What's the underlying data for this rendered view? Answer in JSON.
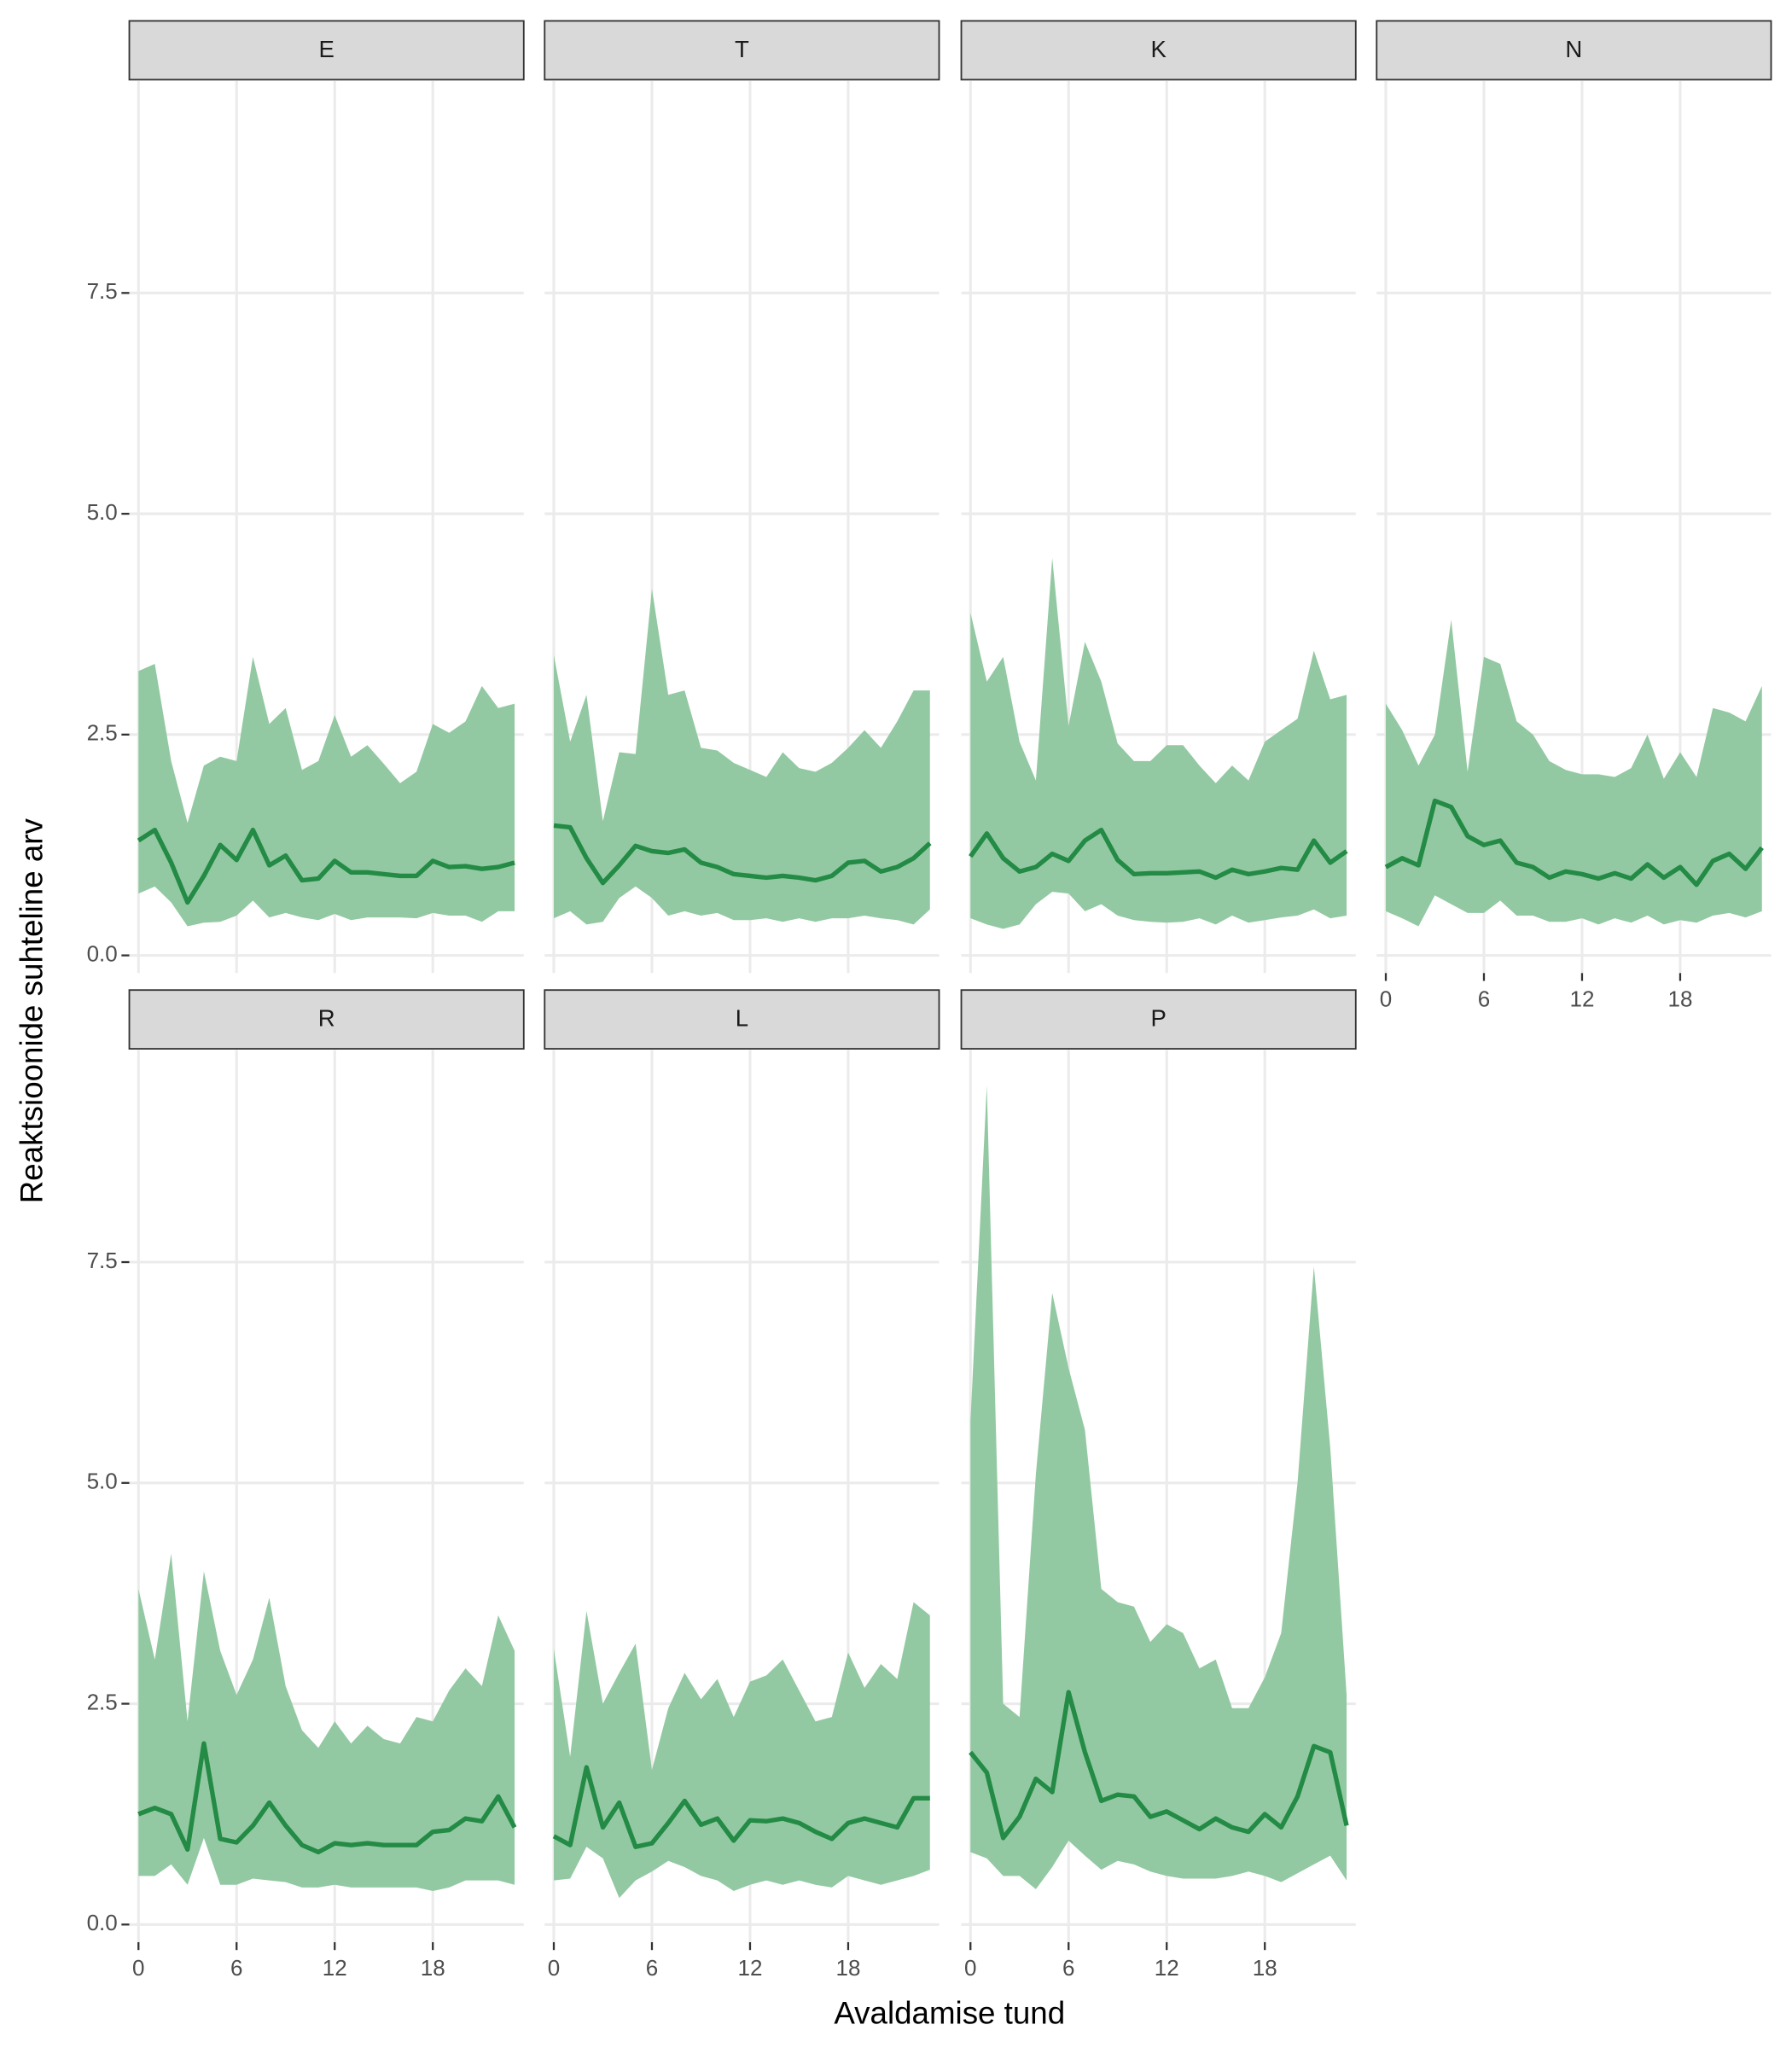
{
  "axis_titles": {
    "x": "Avaldamise tund",
    "y": "Reaktsioonide suhteline arv"
  },
  "chart_data": [
    {
      "type": "line",
      "title": "E",
      "color": "#238b45",
      "band_color": "#93c9a2",
      "x": [
        0,
        1,
        2,
        3,
        4,
        5,
        6,
        7,
        8,
        9,
        10,
        11,
        12,
        13,
        14,
        15,
        16,
        17,
        18,
        19,
        20,
        21,
        22,
        23
      ],
      "values": [
        1.3,
        1.42,
        1.05,
        0.6,
        0.9,
        1.25,
        1.08,
        1.42,
        1.02,
        1.13,
        0.85,
        0.87,
        1.07,
        0.94,
        0.94,
        0.92,
        0.9,
        0.9,
        1.07,
        1.0,
        1.01,
        0.98,
        1.0,
        1.05
      ],
      "upper": [
        3.22,
        3.3,
        2.2,
        1.5,
        2.15,
        2.25,
        2.2,
        3.38,
        2.62,
        2.8,
        2.1,
        2.2,
        2.72,
        2.25,
        2.38,
        2.17,
        1.95,
        2.08,
        2.62,
        2.52,
        2.65,
        3.05,
        2.8,
        2.85
      ],
      "lower": [
        0.7,
        0.78,
        0.6,
        0.33,
        0.37,
        0.38,
        0.45,
        0.62,
        0.43,
        0.48,
        0.43,
        0.4,
        0.47,
        0.4,
        0.43,
        0.43,
        0.43,
        0.42,
        0.48,
        0.45,
        0.45,
        0.38,
        0.5,
        0.5
      ],
      "xlim": [
        -0.56,
        23.56
      ],
      "ylim": [
        -0.2,
        9.9
      ],
      "xticks": [
        0,
        6,
        12,
        18
      ],
      "yticks": [
        {
          "value": 0,
          "label": "0.0"
        },
        2.5,
        {
          "value": 5,
          "label": "5.0"
        },
        7.5
      ],
      "grid": true
    },
    {
      "type": "line",
      "title": "T",
      "color": "#238b45",
      "band_color": "#93c9a2",
      "x": [
        0,
        1,
        2,
        3,
        4,
        5,
        6,
        7,
        8,
        9,
        10,
        11,
        12,
        13,
        14,
        15,
        16,
        17,
        18,
        19,
        20,
        21,
        22,
        23
      ],
      "values": [
        1.47,
        1.45,
        1.1,
        0.82,
        1.02,
        1.24,
        1.18,
        1.16,
        1.2,
        1.05,
        1.0,
        0.92,
        0.9,
        0.88,
        0.9,
        0.88,
        0.85,
        0.9,
        1.05,
        1.07,
        0.95,
        1.0,
        1.1,
        1.27
      ],
      "upper": [
        3.4,
        2.42,
        2.95,
        1.52,
        2.3,
        2.28,
        4.15,
        2.95,
        3.0,
        2.35,
        2.32,
        2.18,
        2.1,
        2.02,
        2.3,
        2.12,
        2.08,
        2.18,
        2.35,
        2.55,
        2.35,
        2.65,
        3.0,
        3.0
      ],
      "lower": [
        0.42,
        0.5,
        0.35,
        0.38,
        0.65,
        0.78,
        0.65,
        0.45,
        0.5,
        0.45,
        0.48,
        0.4,
        0.4,
        0.42,
        0.38,
        0.42,
        0.38,
        0.42,
        0.42,
        0.45,
        0.42,
        0.4,
        0.35,
        0.52
      ],
      "xlim": [
        -0.56,
        23.56
      ],
      "ylim": [
        -0.2,
        9.9
      ],
      "xticks": [
        0,
        6,
        12,
        18
      ],
      "yticks": [
        {
          "value": 0,
          "label": "0.0"
        },
        2.5,
        {
          "value": 5,
          "label": "5.0"
        },
        7.5
      ],
      "grid": true
    },
    {
      "type": "line",
      "title": "K",
      "color": "#238b45",
      "band_color": "#93c9a2",
      "x": [
        0,
        1,
        2,
        3,
        4,
        5,
        6,
        7,
        8,
        9,
        10,
        11,
        12,
        13,
        14,
        15,
        16,
        17,
        18,
        19,
        20,
        21,
        22,
        23
      ],
      "values": [
        1.12,
        1.38,
        1.1,
        0.95,
        1.0,
        1.15,
        1.07,
        1.3,
        1.42,
        1.08,
        0.92,
        0.93,
        0.93,
        0.94,
        0.95,
        0.88,
        0.97,
        0.92,
        0.95,
        0.99,
        0.97,
        1.3,
        1.05,
        1.18
      ],
      "upper": [
        3.88,
        3.1,
        3.38,
        2.42,
        1.98,
        4.5,
        2.6,
        3.55,
        3.1,
        2.4,
        2.2,
        2.2,
        2.38,
        2.38,
        2.15,
        1.95,
        2.15,
        1.98,
        2.42,
        2.55,
        2.68,
        3.45,
        2.9,
        2.95
      ],
      "lower": [
        0.42,
        0.35,
        0.3,
        0.35,
        0.58,
        0.72,
        0.7,
        0.5,
        0.58,
        0.45,
        0.4,
        0.38,
        0.37,
        0.38,
        0.42,
        0.35,
        0.45,
        0.37,
        0.4,
        0.43,
        0.45,
        0.52,
        0.42,
        0.45
      ],
      "xlim": [
        -0.56,
        23.56
      ],
      "ylim": [
        -0.2,
        9.9
      ],
      "xticks": [
        0,
        6,
        12,
        18
      ],
      "yticks": [
        {
          "value": 0,
          "label": "0.0"
        },
        2.5,
        {
          "value": 5,
          "label": "5.0"
        },
        7.5
      ],
      "grid": true
    },
    {
      "type": "line",
      "title": "N",
      "color": "#238b45",
      "band_color": "#93c9a2",
      "x": [
        0,
        1,
        2,
        3,
        4,
        5,
        6,
        7,
        8,
        9,
        10,
        11,
        12,
        13,
        14,
        15,
        16,
        17,
        18,
        19,
        20,
        21,
        22,
        23
      ],
      "values": [
        1.0,
        1.1,
        1.02,
        1.75,
        1.68,
        1.35,
        1.25,
        1.3,
        1.05,
        1.0,
        0.88,
        0.95,
        0.92,
        0.87,
        0.93,
        0.87,
        1.03,
        0.88,
        1.0,
        0.8,
        1.07,
        1.15,
        0.98,
        1.22
      ],
      "upper": [
        2.85,
        2.55,
        2.15,
        2.5,
        3.8,
        2.08,
        3.38,
        3.3,
        2.65,
        2.5,
        2.2,
        2.1,
        2.05,
        2.05,
        2.02,
        2.12,
        2.5,
        2.0,
        2.3,
        2.02,
        2.8,
        2.75,
        2.65,
        3.05
      ],
      "lower": [
        0.5,
        0.42,
        0.33,
        0.68,
        0.58,
        0.48,
        0.48,
        0.62,
        0.45,
        0.45,
        0.38,
        0.38,
        0.42,
        0.35,
        0.42,
        0.37,
        0.45,
        0.35,
        0.4,
        0.37,
        0.45,
        0.48,
        0.43,
        0.5
      ],
      "xlim": [
        -0.56,
        23.56
      ],
      "ylim": [
        -0.2,
        9.9
      ],
      "xticks": [
        0,
        6,
        12,
        18
      ],
      "yticks": [
        {
          "value": 0,
          "label": "0.0"
        },
        2.5,
        {
          "value": 5,
          "label": "5.0"
        },
        7.5
      ],
      "grid": true
    },
    {
      "type": "line",
      "title": "R",
      "color": "#238b45",
      "band_color": "#93c9a2",
      "x": [
        0,
        1,
        2,
        3,
        4,
        5,
        6,
        7,
        8,
        9,
        10,
        11,
        12,
        13,
        14,
        15,
        16,
        17,
        18,
        19,
        20,
        21,
        22,
        23
      ],
      "values": [
        1.25,
        1.32,
        1.25,
        0.85,
        2.05,
        0.97,
        0.93,
        1.12,
        1.38,
        1.12,
        0.9,
        0.82,
        0.92,
        0.9,
        0.92,
        0.9,
        0.9,
        0.9,
        1.05,
        1.07,
        1.2,
        1.17,
        1.45,
        1.1
      ],
      "upper": [
        3.8,
        3.0,
        4.2,
        2.3,
        4.0,
        3.1,
        2.6,
        3.0,
        3.7,
        2.7,
        2.2,
        2.0,
        2.3,
        2.05,
        2.25,
        2.1,
        2.05,
        2.35,
        2.3,
        2.65,
        2.9,
        2.7,
        3.5,
        3.1
      ],
      "lower": [
        0.55,
        0.55,
        0.68,
        0.45,
        0.98,
        0.45,
        0.45,
        0.52,
        0.5,
        0.48,
        0.42,
        0.42,
        0.45,
        0.42,
        0.42,
        0.42,
        0.42,
        0.42,
        0.38,
        0.42,
        0.5,
        0.5,
        0.5,
        0.45
      ],
      "xlim": [
        -0.56,
        23.56
      ],
      "ylim": [
        -0.2,
        9.9
      ],
      "xticks": [
        0,
        6,
        12,
        18
      ],
      "yticks": [
        {
          "value": 0,
          "label": "0.0"
        },
        2.5,
        {
          "value": 5,
          "label": "5.0"
        },
        7.5
      ],
      "grid": true
    },
    {
      "type": "line",
      "title": "L",
      "color": "#238b45",
      "band_color": "#93c9a2",
      "x": [
        0,
        1,
        2,
        3,
        4,
        5,
        6,
        7,
        8,
        9,
        10,
        11,
        12,
        13,
        14,
        15,
        16,
        17,
        18,
        19,
        20,
        21,
        22,
        23
      ],
      "values": [
        1.0,
        0.9,
        1.78,
        1.1,
        1.38,
        0.88,
        0.92,
        1.15,
        1.4,
        1.13,
        1.2,
        0.95,
        1.18,
        1.17,
        1.2,
        1.15,
        1.05,
        0.97,
        1.15,
        1.2,
        1.15,
        1.1,
        1.43,
        1.43
      ],
      "upper": [
        3.12,
        1.9,
        3.55,
        2.5,
        2.85,
        3.18,
        1.75,
        2.45,
        2.85,
        2.55,
        2.78,
        2.35,
        2.75,
        2.82,
        3.0,
        2.65,
        2.3,
        2.35,
        3.08,
        2.68,
        2.95,
        2.78,
        3.65,
        3.5
      ],
      "lower": [
        0.5,
        0.52,
        0.88,
        0.75,
        0.3,
        0.5,
        0.6,
        0.72,
        0.65,
        0.55,
        0.5,
        0.38,
        0.45,
        0.5,
        0.45,
        0.5,
        0.45,
        0.42,
        0.55,
        0.5,
        0.45,
        0.5,
        0.55,
        0.62
      ],
      "xlim": [
        -0.56,
        23.56
      ],
      "ylim": [
        -0.2,
        9.9
      ],
      "xticks": [
        0,
        6,
        12,
        18
      ],
      "yticks": [
        {
          "value": 0,
          "label": "0.0"
        },
        2.5,
        {
          "value": 5,
          "label": "5.0"
        },
        7.5
      ],
      "grid": true
    },
    {
      "type": "line",
      "title": "P",
      "color": "#238b45",
      "band_color": "#93c9a2",
      "x": [
        0,
        1,
        2,
        3,
        4,
        5,
        6,
        7,
        8,
        9,
        10,
        11,
        12,
        13,
        14,
        15,
        16,
        17,
        18,
        19,
        20,
        21,
        22,
        23
      ],
      "values": [
        1.95,
        1.72,
        0.98,
        1.22,
        1.65,
        1.5,
        2.63,
        1.95,
        1.4,
        1.47,
        1.45,
        1.22,
        1.28,
        1.18,
        1.08,
        1.2,
        1.1,
        1.05,
        1.25,
        1.1,
        1.45,
        2.02,
        1.95,
        1.12
      ],
      "upper": [
        5.7,
        9.5,
        2.5,
        2.35,
        5.1,
        7.15,
        6.3,
        5.6,
        3.8,
        3.65,
        3.6,
        3.2,
        3.4,
        3.3,
        2.9,
        3.0,
        2.45,
        2.45,
        2.8,
        3.3,
        5.0,
        7.45,
        5.4,
        2.6
      ],
      "lower": [
        0.82,
        0.75,
        0.55,
        0.55,
        0.4,
        0.65,
        0.95,
        0.78,
        0.62,
        0.72,
        0.68,
        0.6,
        0.55,
        0.52,
        0.52,
        0.52,
        0.55,
        0.6,
        0.55,
        0.48,
        0.58,
        0.68,
        0.78,
        0.5
      ],
      "xlim": [
        -0.56,
        23.56
      ],
      "ylim": [
        -0.2,
        9.9
      ],
      "xticks": [
        0,
        6,
        12,
        18
      ],
      "yticks": [
        {
          "value": 0,
          "label": "0.0"
        },
        2.5,
        {
          "value": 5,
          "label": "5.0"
        },
        7.5
      ],
      "grid": true
    }
  ]
}
